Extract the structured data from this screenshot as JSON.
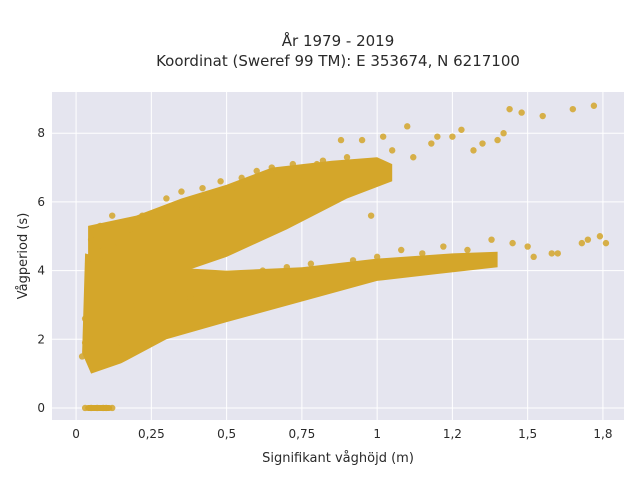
{
  "chart_data": {
    "type": "scatter",
    "title_line1": "År 1979 - 2019",
    "title_line2": "Koordinat (Sweref 99 TM): E 353674, N 6217100",
    "xlabel": "Signifikant våghöjd (m)",
    "ylabel": "Vågperiod (s)",
    "xlim": [
      -0.08,
      1.82
    ],
    "ylim": [
      -0.35,
      9.2
    ],
    "x_ticks": [
      {
        "value": 0,
        "label": "0"
      },
      {
        "value": 0.25,
        "label": "0,25"
      },
      {
        "value": 0.5,
        "label": "0,5"
      },
      {
        "value": 0.75,
        "label": "0,75"
      },
      {
        "value": 1,
        "label": "1"
      },
      {
        "value": 1.25,
        "label": "1,2"
      },
      {
        "value": 1.5,
        "label": "1,5"
      },
      {
        "value": 1.75,
        "label": "1,8"
      }
    ],
    "y_ticks": [
      {
        "value": 0,
        "label": "0"
      },
      {
        "value": 2,
        "label": "2"
      },
      {
        "value": 4,
        "label": "4"
      },
      {
        "value": 6,
        "label": "6"
      },
      {
        "value": 8,
        "label": "8"
      }
    ],
    "grid": true,
    "colors": {
      "plot_background": "#e5e5ef",
      "grid": "#ffffff",
      "marker": "#d4a62a"
    },
    "points": [
      [
        0.02,
        1.5
      ],
      [
        0.03,
        1.9
      ],
      [
        0.03,
        2.6
      ],
      [
        0.04,
        3.4
      ],
      [
        0.04,
        4.2
      ],
      [
        0.05,
        4.9
      ],
      [
        0.05,
        2.0
      ],
      [
        0.06,
        1.2
      ],
      [
        0.07,
        3.0
      ],
      [
        0.08,
        5.3
      ],
      [
        0.09,
        4.6
      ],
      [
        0.1,
        2.4
      ],
      [
        0.12,
        5.6
      ],
      [
        0.14,
        4.8
      ],
      [
        0.15,
        1.9
      ],
      [
        0.18,
        5.2
      ],
      [
        0.2,
        3.0
      ],
      [
        0.22,
        5.6
      ],
      [
        0.25,
        2.6
      ],
      [
        0.28,
        5.4
      ],
      [
        0.3,
        6.1
      ],
      [
        0.32,
        3.4
      ],
      [
        0.35,
        6.3
      ],
      [
        0.38,
        3.2
      ],
      [
        0.4,
        5.8
      ],
      [
        0.42,
        6.4
      ],
      [
        0.45,
        3.6
      ],
      [
        0.48,
        6.6
      ],
      [
        0.5,
        3.8
      ],
      [
        0.52,
        6.4
      ],
      [
        0.55,
        6.7
      ],
      [
        0.58,
        3.8
      ],
      [
        0.6,
        6.9
      ],
      [
        0.62,
        4.0
      ],
      [
        0.65,
        7.0
      ],
      [
        0.68,
        6.2
      ],
      [
        0.7,
        4.1
      ],
      [
        0.72,
        7.1
      ],
      [
        0.75,
        6.6
      ],
      [
        0.78,
        4.2
      ],
      [
        0.8,
        7.1
      ],
      [
        0.82,
        7.2
      ],
      [
        0.85,
        4.1
      ],
      [
        0.88,
        7.8
      ],
      [
        0.9,
        7.3
      ],
      [
        0.92,
        4.3
      ],
      [
        0.95,
        7.8
      ],
      [
        0.98,
        5.6
      ],
      [
        1.0,
        4.4
      ],
      [
        1.02,
        7.9
      ],
      [
        1.05,
        7.5
      ],
      [
        1.08,
        4.6
      ],
      [
        1.1,
        8.2
      ],
      [
        1.12,
        7.3
      ],
      [
        1.15,
        4.5
      ],
      [
        1.18,
        7.7
      ],
      [
        1.2,
        7.9
      ],
      [
        1.22,
        4.7
      ],
      [
        1.25,
        7.9
      ],
      [
        1.28,
        8.1
      ],
      [
        1.3,
        4.6
      ],
      [
        1.32,
        7.5
      ],
      [
        1.35,
        7.7
      ],
      [
        1.38,
        4.9
      ],
      [
        1.4,
        7.8
      ],
      [
        1.42,
        8.0
      ],
      [
        1.44,
        8.7
      ],
      [
        1.45,
        4.8
      ],
      [
        1.48,
        8.6
      ],
      [
        1.5,
        4.7
      ],
      [
        1.52,
        4.4
      ],
      [
        1.55,
        8.5
      ],
      [
        1.58,
        4.5
      ],
      [
        1.6,
        4.5
      ],
      [
        1.65,
        8.7
      ],
      [
        1.68,
        4.8
      ],
      [
        1.7,
        4.9
      ],
      [
        1.72,
        8.8
      ],
      [
        1.74,
        5.0
      ],
      [
        1.76,
        4.8
      ]
    ],
    "zero_points": [
      [
        0.03,
        0
      ],
      [
        0.05,
        0
      ],
      [
        0.07,
        0
      ],
      [
        0.09,
        0
      ],
      [
        0.1,
        0
      ],
      [
        0.12,
        0
      ]
    ]
  }
}
